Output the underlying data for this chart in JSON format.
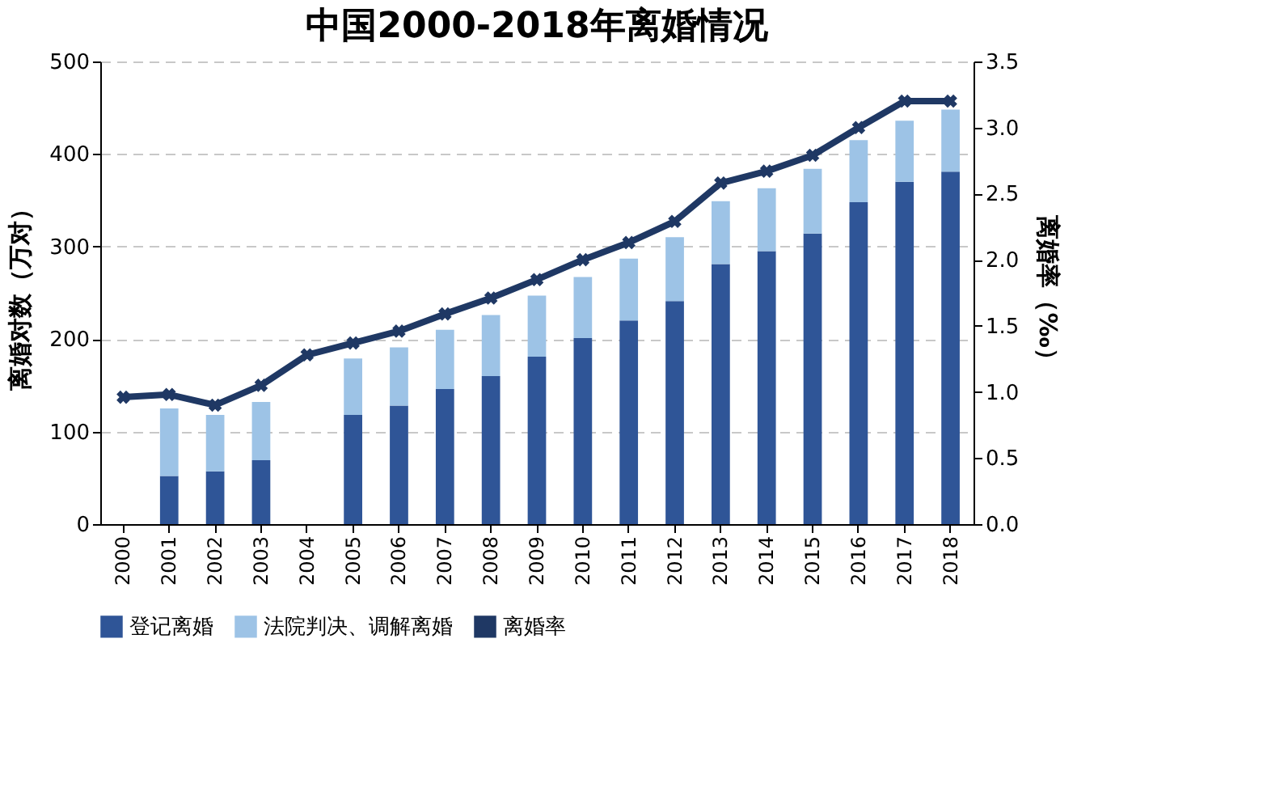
{
  "chart_data": {
    "type": "bar",
    "title": "中国2000-2018年离婚情况",
    "categories": [
      "2000",
      "2001",
      "2002",
      "2003",
      "2004",
      "2005",
      "2006",
      "2007",
      "2008",
      "2009",
      "2010",
      "2011",
      "2012",
      "2013",
      "2014",
      "2015",
      "2016",
      "2017",
      "2018"
    ],
    "stacked": true,
    "series": [
      {
        "name": "登记离婚",
        "color": "#2f5597",
        "values": [
          null,
          52,
          57,
          69,
          null,
          118,
          128,
          146,
          160,
          181,
          201,
          220,
          241,
          281,
          295,
          314,
          348,
          370,
          381
        ]
      },
      {
        "name": "法院判决、调解离婚",
        "color": "#9dc3e6",
        "values": [
          null,
          73,
          61,
          63,
          null,
          61,
          63,
          64,
          66,
          66,
          66,
          67,
          69,
          68,
          68,
          70,
          67,
          66,
          67
        ]
      },
      {
        "name": "离婚率",
        "type": "line",
        "axis": "y2",
        "color": "#1f3864",
        "marker": "cross",
        "values": [
          0.96,
          0.98,
          0.9,
          1.05,
          1.28,
          1.37,
          1.46,
          1.59,
          1.71,
          1.85,
          2.0,
          2.13,
          2.29,
          2.58,
          2.67,
          2.79,
          3.0,
          3.2,
          3.2
        ]
      }
    ],
    "ylabel": "离婚对数（万对）",
    "y2label": "离婚率（‰）",
    "ylim": [
      0,
      500
    ],
    "yticks": [
      0,
      100,
      200,
      300,
      400,
      500
    ],
    "y2lim": [
      0,
      3.5
    ],
    "y2ticks": [
      {
        "value": 0,
        "label": "0.0"
      },
      {
        "value": 0.5,
        "label": "0.5"
      },
      {
        "value": 1,
        "label": "1.0"
      },
      {
        "value": 1.5,
        "label": "1.5"
      },
      {
        "value": 2,
        "label": "2.0"
      },
      {
        "value": 2.5,
        "label": "2.5"
      },
      {
        "value": 3,
        "label": "3.0"
      },
      {
        "value": 3.5,
        "label": "3.5"
      }
    ],
    "grid": "y",
    "legend": "bottom"
  }
}
